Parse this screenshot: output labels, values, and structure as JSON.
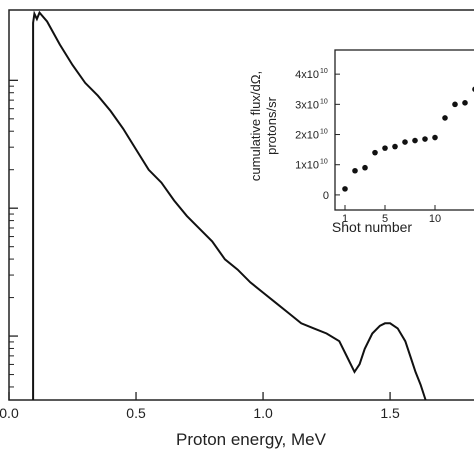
{
  "chart_data": [
    {
      "type": "line",
      "xlabel": "Proton energy, MeV",
      "ylabel": "",
      "xlim": [
        0.0,
        1.85
      ],
      "ylog": true,
      "ylim_log10": [
        0.5,
        3.55
      ],
      "x_tick_labels": [
        {
          "v": 0.0,
          "label": "0.0"
        },
        {
          "v": 0.5,
          "label": "0.5"
        },
        {
          "v": 1.0,
          "label": "1.0"
        },
        {
          "v": 1.5,
          "label": "1.5"
        }
      ],
      "y_major_ticks_log10": [
        1,
        2,
        3
      ],
      "grid": false,
      "series": [
        {
          "x": [
            0.095,
            0.095,
            0.1,
            0.11,
            0.12,
            0.15,
            0.2,
            0.25,
            0.3,
            0.35,
            0.4,
            0.45,
            0.5,
            0.55,
            0.6,
            0.65,
            0.7,
            0.75,
            0.8,
            0.85,
            0.9,
            0.95,
            1.0,
            1.05,
            1.1,
            1.15,
            1.2,
            1.25,
            1.3,
            1.33,
            1.36,
            1.38,
            1.4,
            1.43,
            1.46,
            1.48,
            1.5,
            1.53,
            1.56,
            1.58,
            1.6,
            1.62,
            1.64
          ],
          "y": [
            0.5,
            3.45,
            3.52,
            3.48,
            3.53,
            3.46,
            3.28,
            3.12,
            2.98,
            2.88,
            2.76,
            2.62,
            2.46,
            2.3,
            2.2,
            2.06,
            1.94,
            1.84,
            1.74,
            1.6,
            1.52,
            1.42,
            1.34,
            1.26,
            1.18,
            1.1,
            1.06,
            1.02,
            0.96,
            0.84,
            0.72,
            0.78,
            0.9,
            1.02,
            1.08,
            1.1,
            1.1,
            1.06,
            0.96,
            0.84,
            0.72,
            0.62,
            0.5
          ]
        }
      ]
    },
    {
      "type": "scatter",
      "xlabel": "Shot number",
      "ylabel_lines": [
        "cumulative flux/dΩ,",
        "protons/sr"
      ],
      "xlim": [
        0,
        14.5
      ],
      "ylim": [
        -0.5,
        4.8
      ],
      "x_tick_labels": [
        {
          "v": 1,
          "label": "1"
        },
        {
          "v": 5,
          "label": "5"
        },
        {
          "v": 10,
          "label": "10"
        }
      ],
      "y_tick_labels": [
        {
          "v": 0,
          "base": "0",
          "exp": ""
        },
        {
          "v": 1,
          "base": "1x10",
          "exp": "10"
        },
        {
          "v": 2,
          "base": "2x10",
          "exp": "10"
        },
        {
          "v": 3,
          "base": "3x10",
          "exp": "10"
        },
        {
          "v": 4,
          "base": "4x10",
          "exp": "10"
        }
      ],
      "y_unit_note": "values in units of 1e10 protons/sr",
      "x": [
        1,
        2,
        3,
        4,
        5,
        6,
        7,
        8,
        9,
        10,
        11,
        12,
        13,
        14
      ],
      "y": [
        0.2,
        0.8,
        0.9,
        1.4,
        1.55,
        1.6,
        1.75,
        1.8,
        1.85,
        1.9,
        2.55,
        3.0,
        3.05,
        3.5
      ]
    }
  ]
}
